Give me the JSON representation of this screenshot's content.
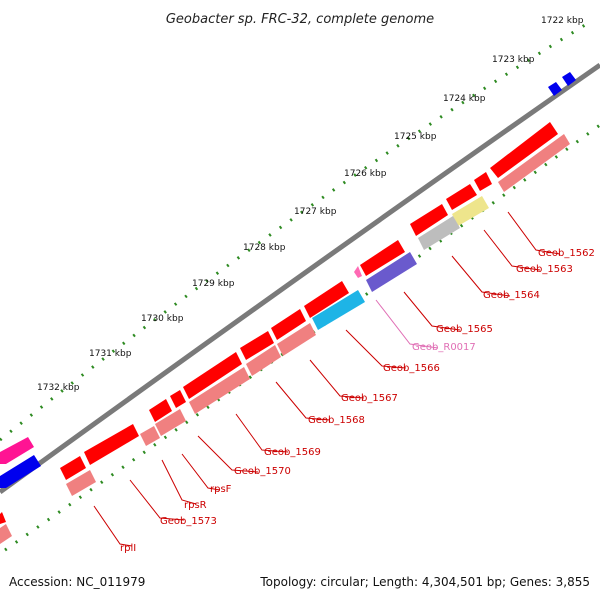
{
  "title": "Geobacter sp. FRC-32, complete genome",
  "footer": {
    "accession": "Accession: NC_011979",
    "topology": "Topology: circular; Length: 4,304,501 bp; Genes: 3,855"
  },
  "colors": {
    "backbone": "#808080",
    "cds_forward": "#ff0000",
    "cds_reverse": "#f08080",
    "ticks_outer": "#2e8b22",
    "label_red": "#cc0000",
    "label_pink": "#e06fb5",
    "blue_gene": "#0000ee",
    "magenta_gene": "#ff1493",
    "cyan_gene": "#1eb4e6",
    "purple_gene": "#6a5acd",
    "yellow_gene": "#eee58c",
    "grey_gene": "#bdbdbd"
  },
  "kbp_labels": [
    "1722 kbp",
    "1723 kbp",
    "1724 kbp",
    "1725 kbp",
    "1726 kbp",
    "1727 kbp",
    "1728 kbp",
    "1729 kbp",
    "1730 kbp",
    "1731 kbp",
    "1732 kbp"
  ],
  "gene_labels": [
    "Geob_1562",
    "Geob_1563",
    "Geob_1564",
    "Geob_1565",
    "Geob_R0017",
    "Geob_1566",
    "Geob_1567",
    "Geob_1568",
    "Geob_1569",
    "Geob_1570",
    "rpsF",
    "rpsR",
    "Geob_1573",
    "rplI"
  ]
}
